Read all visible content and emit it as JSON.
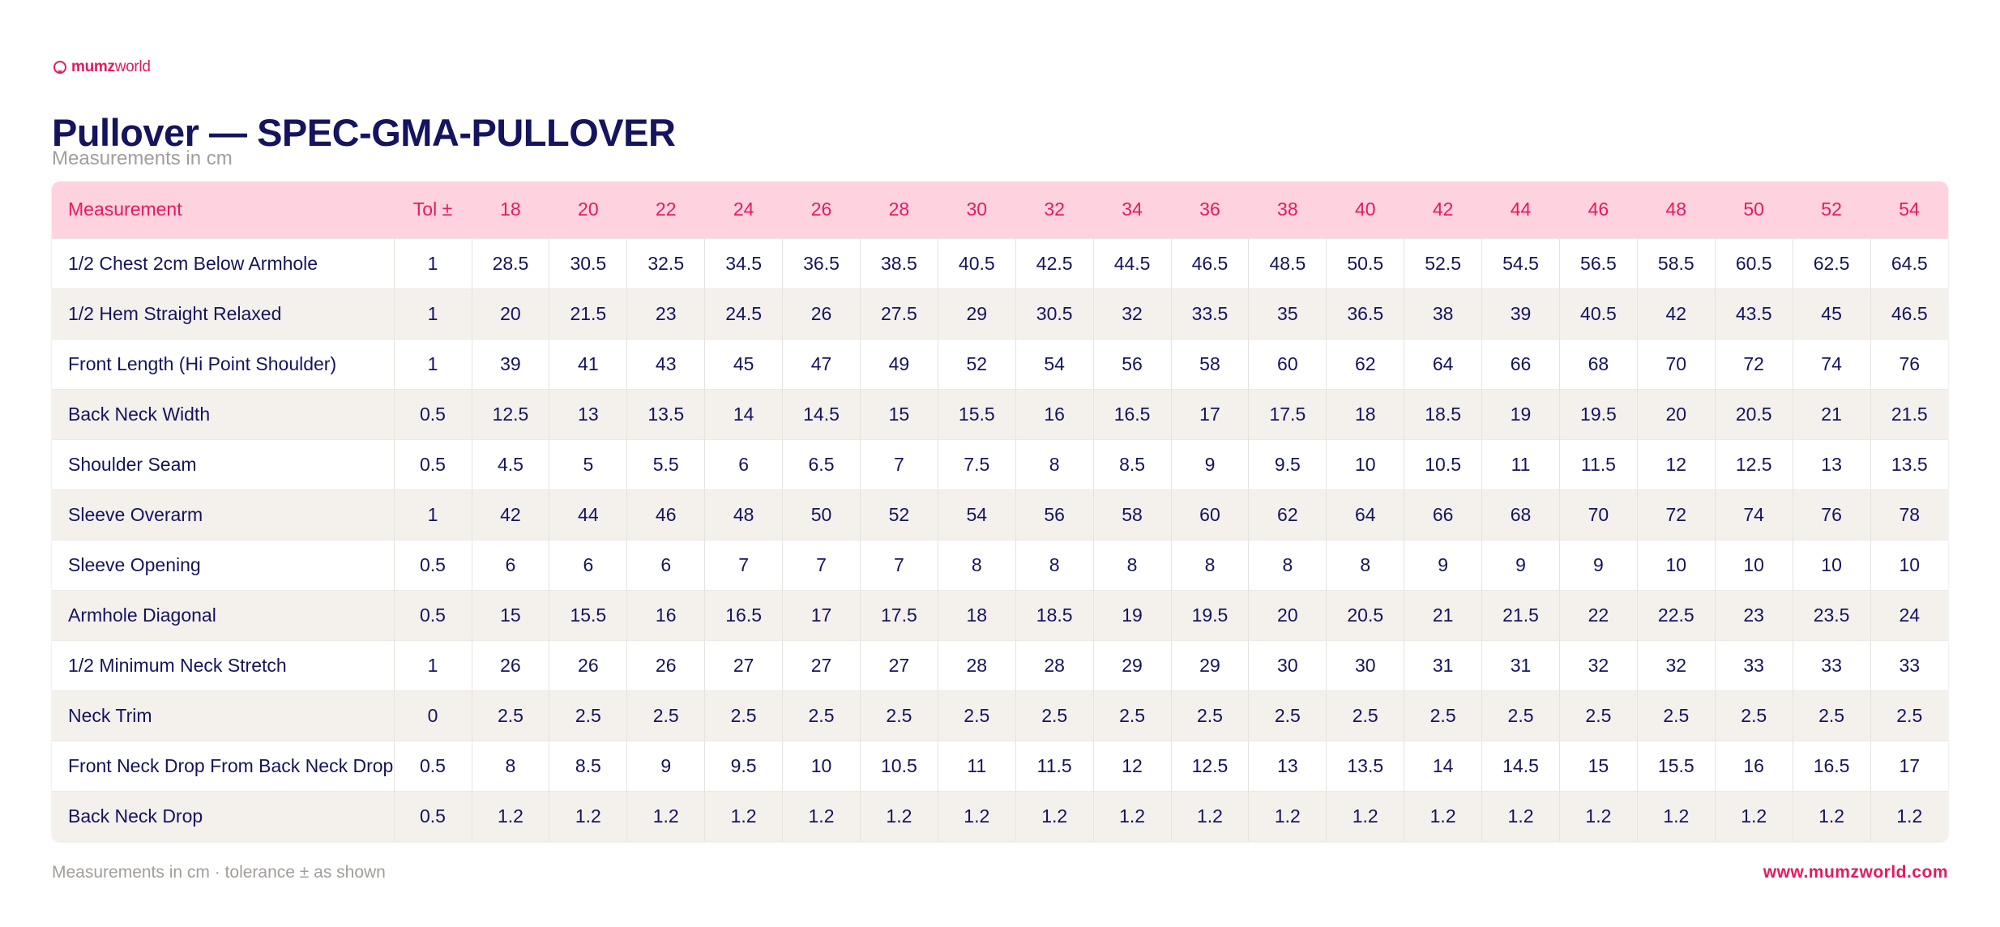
{
  "brand": {
    "logo_bold": "mumz",
    "logo_light": "world"
  },
  "header": {
    "title": "Pullover — SPEC-GMA-PULLOVER",
    "subtitle": "Measurements in cm"
  },
  "table": {
    "headers": [
      "Measurement",
      "Tol ±",
      "18",
      "20",
      "22",
      "24",
      "26",
      "28",
      "30",
      "32",
      "34",
      "36",
      "38",
      "40",
      "42",
      "44",
      "46",
      "48",
      "50",
      "52",
      "54"
    ],
    "rows": [
      {
        "name": "1/2 Chest 2cm Below Armhole",
        "tol": "1",
        "values": [
          "28.5",
          "30.5",
          "32.5",
          "34.5",
          "36.5",
          "38.5",
          "40.5",
          "42.5",
          "44.5",
          "46.5",
          "48.5",
          "50.5",
          "52.5",
          "54.5",
          "56.5",
          "58.5",
          "60.5",
          "62.5",
          "64.5"
        ]
      },
      {
        "name": "1/2 Hem Straight Relaxed",
        "tol": "1",
        "values": [
          "20",
          "21.5",
          "23",
          "24.5",
          "26",
          "27.5",
          "29",
          "30.5",
          "32",
          "33.5",
          "35",
          "36.5",
          "38",
          "39",
          "40.5",
          "42",
          "43.5",
          "45",
          "46.5"
        ]
      },
      {
        "name": "Front Length (Hi Point Shoulder)",
        "tol": "1",
        "values": [
          "39",
          "41",
          "43",
          "45",
          "47",
          "49",
          "52",
          "54",
          "56",
          "58",
          "60",
          "62",
          "64",
          "66",
          "68",
          "70",
          "72",
          "74",
          "76"
        ]
      },
      {
        "name": "Back Neck Width",
        "tol": "0.5",
        "values": [
          "12.5",
          "13",
          "13.5",
          "14",
          "14.5",
          "15",
          "15.5",
          "16",
          "16.5",
          "17",
          "17.5",
          "18",
          "18.5",
          "19",
          "19.5",
          "20",
          "20.5",
          "21",
          "21.5"
        ]
      },
      {
        "name": "Shoulder Seam",
        "tol": "0.5",
        "values": [
          "4.5",
          "5",
          "5.5",
          "6",
          "6.5",
          "7",
          "7.5",
          "8",
          "8.5",
          "9",
          "9.5",
          "10",
          "10.5",
          "11",
          "11.5",
          "12",
          "12.5",
          "13",
          "13.5"
        ]
      },
      {
        "name": "Sleeve Overarm",
        "tol": "1",
        "values": [
          "42",
          "44",
          "46",
          "48",
          "50",
          "52",
          "54",
          "56",
          "58",
          "60",
          "62",
          "64",
          "66",
          "68",
          "70",
          "72",
          "74",
          "76",
          "78"
        ]
      },
      {
        "name": "Sleeve Opening",
        "tol": "0.5",
        "values": [
          "6",
          "6",
          "6",
          "7",
          "7",
          "7",
          "8",
          "8",
          "8",
          "8",
          "8",
          "8",
          "9",
          "9",
          "9",
          "10",
          "10",
          "10",
          "10"
        ]
      },
      {
        "name": "Armhole Diagonal",
        "tol": "0.5",
        "values": [
          "15",
          "15.5",
          "16",
          "16.5",
          "17",
          "17.5",
          "18",
          "18.5",
          "19",
          "19.5",
          "20",
          "20.5",
          "21",
          "21.5",
          "22",
          "22.5",
          "23",
          "23.5",
          "24"
        ]
      },
      {
        "name": "1/2 Minimum Neck Stretch",
        "tol": "1",
        "values": [
          "26",
          "26",
          "26",
          "27",
          "27",
          "27",
          "28",
          "28",
          "29",
          "29",
          "30",
          "30",
          "31",
          "31",
          "32",
          "32",
          "33",
          "33",
          "33"
        ]
      },
      {
        "name": "Neck Trim",
        "tol": "0",
        "values": [
          "2.5",
          "2.5",
          "2.5",
          "2.5",
          "2.5",
          "2.5",
          "2.5",
          "2.5",
          "2.5",
          "2.5",
          "2.5",
          "2.5",
          "2.5",
          "2.5",
          "2.5",
          "2.5",
          "2.5",
          "2.5",
          "2.5"
        ]
      },
      {
        "name": "Front Neck Drop From Back Neck Drop",
        "tol": "0.5",
        "values": [
          "8",
          "8.5",
          "9",
          "9.5",
          "10",
          "10.5",
          "11",
          "11.5",
          "12",
          "12.5",
          "13",
          "13.5",
          "14",
          "14.5",
          "15",
          "15.5",
          "16",
          "16.5",
          "17"
        ]
      },
      {
        "name": "Back Neck Drop",
        "tol": "0.5",
        "values": [
          "1.2",
          "1.2",
          "1.2",
          "1.2",
          "1.2",
          "1.2",
          "1.2",
          "1.2",
          "1.2",
          "1.2",
          "1.2",
          "1.2",
          "1.2",
          "1.2",
          "1.2",
          "1.2",
          "1.2",
          "1.2",
          "1.2"
        ]
      }
    ]
  },
  "footer": {
    "note": "Measurements in cm · tolerance ± as shown",
    "url": "www.mumzworld.com"
  },
  "colors": {
    "navy": "#14145f",
    "pink": "#e6195f",
    "header_bg": "#ffd2df",
    "stripe_bg": "#f4f0ec"
  }
}
